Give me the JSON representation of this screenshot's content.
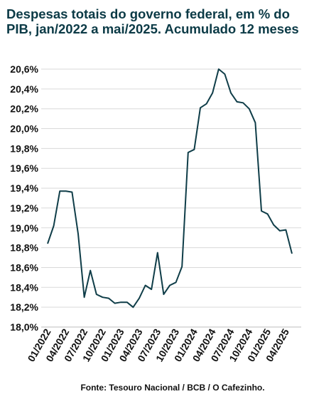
{
  "chart_data": {
    "type": "line",
    "title": "Despesas totais do governo federal, em % do PIB, jan/2022 a mai/2025. Acumulado 12 meses",
    "xlabel": "",
    "ylabel": "",
    "ylim": [
      18.0,
      20.6
    ],
    "ytick_values": [
      18.0,
      18.2,
      18.4,
      18.6,
      18.8,
      19.0,
      19.2,
      19.4,
      19.6,
      19.8,
      20.0,
      20.2,
      20.4,
      20.6
    ],
    "ytick_labels": [
      "18,0%",
      "18,2%",
      "18,4%",
      "18,6%",
      "18,8%",
      "19,0%",
      "19,2%",
      "19,4%",
      "19,6%",
      "19,8%",
      "20,0%",
      "20,2%",
      "20,4%",
      "20,6%"
    ],
    "xtick_labels": [
      "01/2022",
      "04/2022",
      "07/2022",
      "10/2022",
      "01/2023",
      "04/2023",
      "07/2023",
      "10/2023",
      "01/2024",
      "04/2024",
      "07/2024",
      "10/2024",
      "01/2025",
      "04/2025"
    ],
    "grid": true,
    "line_color": "#0f3d48",
    "series": [
      {
        "x": [
          "01/2022",
          "02/2022",
          "03/2022",
          "04/2022",
          "05/2022",
          "06/2022",
          "07/2022",
          "08/2022",
          "09/2022",
          "10/2022",
          "11/2022",
          "12/2022",
          "01/2023",
          "02/2023",
          "03/2023",
          "04/2023",
          "05/2023",
          "06/2023",
          "07/2023",
          "08/2023",
          "09/2023",
          "10/2023",
          "11/2023",
          "12/2023",
          "01/2024",
          "02/2024",
          "03/2024",
          "04/2024",
          "05/2024",
          "06/2024",
          "07/2024",
          "08/2024",
          "09/2024",
          "10/2024",
          "11/2024",
          "12/2024",
          "01/2025",
          "02/2025",
          "03/2025",
          "04/2025",
          "05/2025"
        ],
        "values": [
          18.84,
          19.02,
          19.37,
          19.37,
          19.36,
          18.94,
          18.3,
          18.57,
          18.33,
          18.3,
          18.29,
          18.24,
          18.25,
          18.25,
          18.2,
          18.29,
          18.42,
          18.38,
          18.75,
          18.33,
          18.42,
          18.45,
          18.61,
          19.76,
          19.79,
          20.21,
          20.25,
          20.36,
          20.6,
          20.55,
          20.36,
          20.27,
          20.26,
          20.2,
          20.06,
          19.17,
          19.14,
          19.03,
          18.97,
          18.98,
          18.74
        ]
      }
    ]
  },
  "footer": {
    "source": "Fonte: Tesouro Nacional / BCB / O Cafezinho."
  }
}
